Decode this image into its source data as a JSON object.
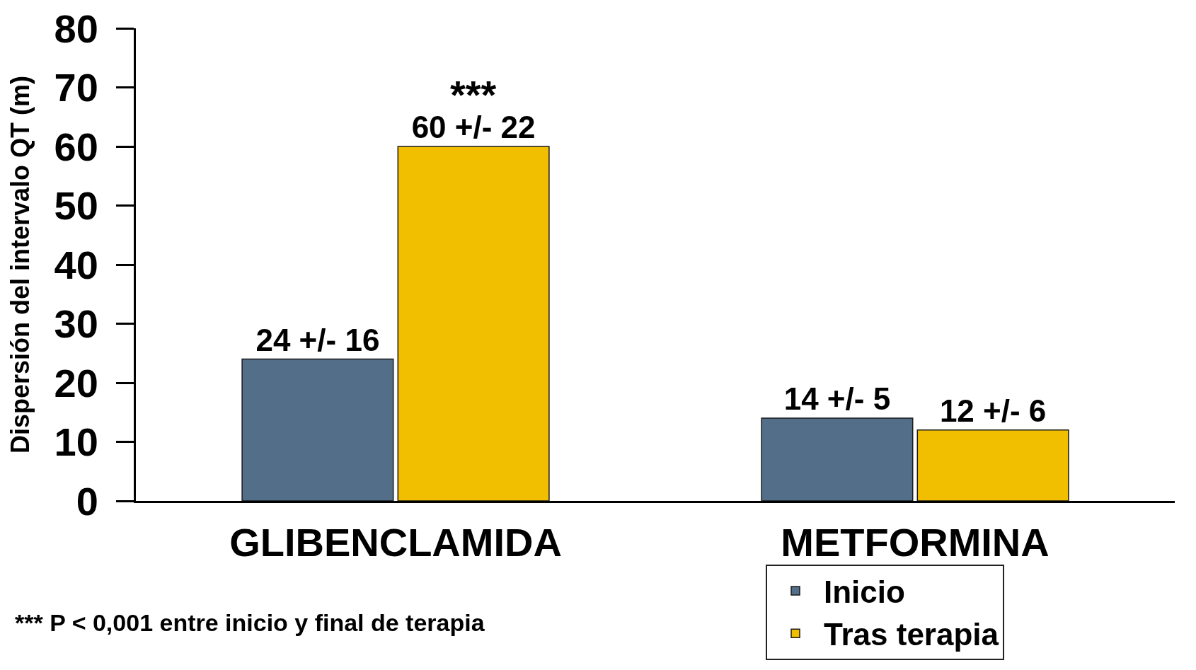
{
  "chart_data": {
    "type": "bar",
    "ylabel": "Dispersión del intervalo QT (m)",
    "categories": [
      "GLIBENCLAMIDA",
      "METFORMINA"
    ],
    "series": [
      {
        "name": "Inicio",
        "color": "#526e88",
        "values": [
          24,
          14
        ],
        "value_labels": [
          "24 +/- 16",
          "14 +/- 5"
        ]
      },
      {
        "name": "Tras terapia",
        "color": "#f2be00",
        "values": [
          60,
          12
        ],
        "value_labels": [
          "60 +/- 22",
          "12 +/- 6"
        ]
      }
    ],
    "ylim": [
      0,
      80
    ],
    "yticks": [
      0,
      10,
      20,
      30,
      40,
      50,
      60,
      70,
      80
    ],
    "legend": "bottom right",
    "annotations": [
      "***",
      "*** P < 0,001 entre inicio y final de terapia"
    ]
  }
}
